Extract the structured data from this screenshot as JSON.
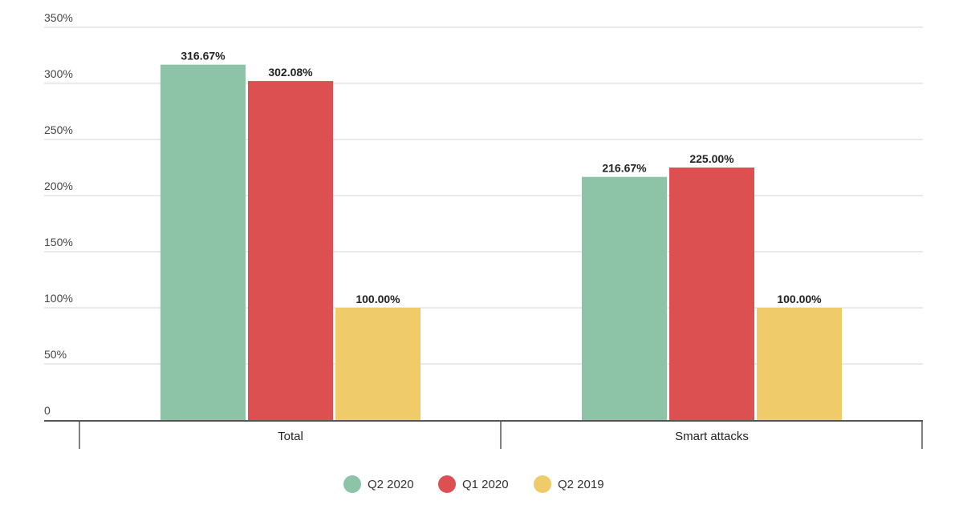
{
  "chart_data": {
    "type": "bar",
    "title": "",
    "xlabel": "",
    "ylabel": "",
    "categories": [
      "Total",
      "Smart attacks"
    ],
    "series": [
      {
        "name": "Q2 2020",
        "color": "#8dc3a7",
        "values": [
          316.67,
          216.67
        ],
        "labels": [
          "316.67%",
          "216.67%"
        ]
      },
      {
        "name": "Q1 2020",
        "color": "#dc5052",
        "values": [
          302.08,
          225.0
        ],
        "labels": [
          "302.08%",
          "225.00%"
        ]
      },
      {
        "name": "Q2 2019",
        "color": "#f0cb69",
        "values": [
          100.0,
          100.0
        ],
        "labels": [
          "100.00%",
          "100.00%"
        ]
      }
    ],
    "ylim": [
      0,
      350
    ],
    "yticks": [
      0,
      50,
      100,
      150,
      200,
      250,
      300,
      350
    ],
    "ytick_labels": [
      "0",
      "50%",
      "100%",
      "150%",
      "200%",
      "250%",
      "300%",
      "350%"
    ],
    "grid": true,
    "legend": "bottom-center"
  }
}
